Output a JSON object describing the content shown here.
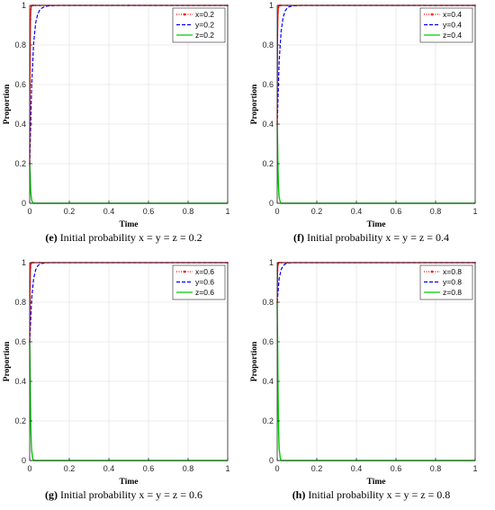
{
  "chart_data": [
    {
      "type": "line",
      "panel_tag": "(e)",
      "caption_text": "Initial probability x = y = z = 0.2",
      "xlabel": "Time",
      "ylabel": "Proportion",
      "xlim": [
        0,
        1
      ],
      "ylim": [
        0,
        1
      ],
      "xticks": [
        "0",
        "0.2",
        "0.4",
        "0.6",
        "0.8",
        "1"
      ],
      "yticks": [
        "0",
        "0.2",
        "0.4",
        "0.6",
        "0.8",
        "1"
      ],
      "grid": true,
      "legend_position": "top-right",
      "series": [
        {
          "name": "x=0.2",
          "color": "#ff0000",
          "style": "dotted-marker",
          "x": [
            0,
            0.002,
            0.004,
            0.006,
            0.008,
            0.01,
            0.015,
            0.02,
            0.03,
            0.05,
            0.1,
            0.5,
            1
          ],
          "y": [
            0.2,
            0.75,
            0.93,
            0.98,
            0.995,
            0.999,
            1,
            1,
            1,
            1,
            1,
            1,
            1
          ]
        },
        {
          "name": "y=0.2",
          "color": "#0000ff",
          "style": "dashed",
          "x": [
            0,
            0.01,
            0.02,
            0.03,
            0.04,
            0.05,
            0.06,
            0.08,
            0.1,
            0.12,
            0.15,
            0.2,
            0.5,
            1
          ],
          "y": [
            0.2,
            0.6,
            0.81,
            0.91,
            0.955,
            0.975,
            0.986,
            0.995,
            0.998,
            0.999,
            1,
            1,
            1,
            1
          ]
        },
        {
          "name": "z=0.2",
          "color": "#00cc00",
          "style": "solid",
          "x": [
            0,
            0.002,
            0.004,
            0.006,
            0.008,
            0.01,
            0.015,
            0.02,
            0.05,
            1
          ],
          "y": [
            0.2,
            0.15,
            0.09,
            0.05,
            0.03,
            0.015,
            0.004,
            0,
            0,
            0
          ]
        }
      ]
    },
    {
      "type": "line",
      "panel_tag": "(f)",
      "caption_text": "Initial probability x = y = z = 0.4",
      "xlabel": "Time",
      "ylabel": "Proportion",
      "xlim": [
        0,
        1
      ],
      "ylim": [
        0,
        1
      ],
      "xticks": [
        "0",
        "0.2",
        "0.4",
        "0.6",
        "0.8",
        "1"
      ],
      "yticks": [
        "0",
        "0.2",
        "0.4",
        "0.6",
        "0.8",
        "1"
      ],
      "grid": true,
      "legend_position": "top-right",
      "series": [
        {
          "name": "x=0.4",
          "color": "#ff0000",
          "style": "dotted-marker",
          "x": [
            0,
            0.002,
            0.004,
            0.006,
            0.008,
            0.01,
            0.015,
            0.02,
            0.05,
            1
          ],
          "y": [
            0.4,
            0.85,
            0.96,
            0.99,
            0.997,
            1,
            1,
            1,
            1,
            1
          ]
        },
        {
          "name": "y=0.4",
          "color": "#0000ff",
          "style": "dashed",
          "x": [
            0,
            0.01,
            0.02,
            0.03,
            0.04,
            0.05,
            0.06,
            0.08,
            0.1,
            0.12,
            0.5,
            1
          ],
          "y": [
            0.4,
            0.72,
            0.87,
            0.94,
            0.972,
            0.986,
            0.993,
            0.998,
            0.999,
            1,
            1,
            1
          ]
        },
        {
          "name": "z=0.4",
          "color": "#00cc00",
          "style": "solid",
          "x": [
            0,
            0.002,
            0.004,
            0.006,
            0.008,
            0.01,
            0.015,
            0.02,
            0.05,
            1
          ],
          "y": [
            0.4,
            0.3,
            0.18,
            0.1,
            0.06,
            0.03,
            0.008,
            0,
            0,
            0
          ]
        }
      ]
    },
    {
      "type": "line",
      "panel_tag": "(g)",
      "caption_text": "Initial probability x = y = z = 0.6",
      "xlabel": "Time",
      "ylabel": "Proportion",
      "xlim": [
        0,
        1
      ],
      "ylim": [
        0,
        1
      ],
      "xticks": [
        "0",
        "0.2",
        "0.4",
        "0.6",
        "0.8",
        "1"
      ],
      "yticks": [
        "0",
        "0.2",
        "0.4",
        "0.6",
        "0.8",
        "1"
      ],
      "grid": true,
      "legend_position": "top-right",
      "series": [
        {
          "name": "x=0.6",
          "color": "#ff0000",
          "style": "dotted-marker",
          "x": [
            0,
            0.002,
            0.004,
            0.006,
            0.008,
            0.01,
            0.015,
            0.02,
            0.05,
            1
          ],
          "y": [
            0.6,
            0.9,
            0.975,
            0.993,
            0.998,
            1,
            1,
            1,
            1,
            1
          ]
        },
        {
          "name": "y=0.6",
          "color": "#0000ff",
          "style": "dashed",
          "x": [
            0,
            0.01,
            0.02,
            0.03,
            0.04,
            0.05,
            0.06,
            0.08,
            0.1,
            0.5,
            1
          ],
          "y": [
            0.6,
            0.82,
            0.92,
            0.963,
            0.983,
            0.992,
            0.996,
            0.999,
            1,
            1,
            1
          ]
        },
        {
          "name": "z=0.6",
          "color": "#00cc00",
          "style": "solid",
          "x": [
            0,
            0.002,
            0.004,
            0.006,
            0.008,
            0.01,
            0.015,
            0.02,
            0.05,
            1
          ],
          "y": [
            0.6,
            0.45,
            0.28,
            0.16,
            0.09,
            0.05,
            0.012,
            0,
            0,
            0
          ]
        }
      ]
    },
    {
      "type": "line",
      "panel_tag": "(h)",
      "caption_text": "Initial probability x = y = z = 0.8",
      "xlabel": "Time",
      "ylabel": "Proportion",
      "xlim": [
        0,
        1
      ],
      "ylim": [
        0,
        1
      ],
      "xticks": [
        "0",
        "0.2",
        "0.4",
        "0.6",
        "0.8",
        "1"
      ],
      "yticks": [
        "0",
        "0.2",
        "0.4",
        "0.6",
        "0.8",
        "1"
      ],
      "grid": true,
      "legend_position": "top-right",
      "series": [
        {
          "name": "x=0.8",
          "color": "#ff0000",
          "style": "dotted-marker",
          "x": [
            0,
            0.002,
            0.004,
            0.006,
            0.008,
            0.01,
            0.02,
            0.05,
            1
          ],
          "y": [
            0.8,
            0.96,
            0.99,
            0.997,
            1,
            1,
            1,
            1,
            1
          ]
        },
        {
          "name": "y=0.8",
          "color": "#0000ff",
          "style": "dashed",
          "x": [
            0,
            0.01,
            0.02,
            0.03,
            0.04,
            0.05,
            0.06,
            0.08,
            0.5,
            1
          ],
          "y": [
            0.8,
            0.92,
            0.965,
            0.985,
            0.993,
            0.997,
            0.999,
            1,
            1,
            1
          ]
        },
        {
          "name": "z=0.8",
          "color": "#00cc00",
          "style": "solid",
          "x": [
            0,
            0.002,
            0.004,
            0.006,
            0.008,
            0.01,
            0.015,
            0.02,
            0.05,
            1
          ],
          "y": [
            0.8,
            0.6,
            0.38,
            0.22,
            0.12,
            0.06,
            0.015,
            0,
            0,
            0
          ]
        }
      ]
    }
  ]
}
